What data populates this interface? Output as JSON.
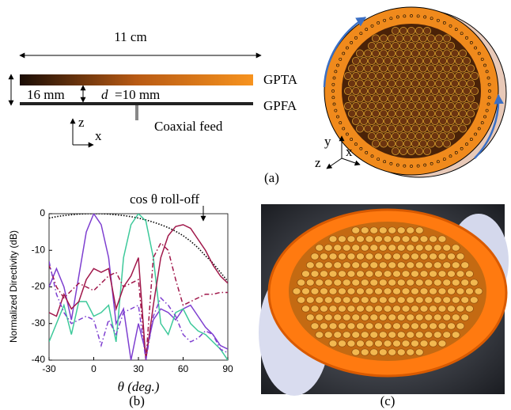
{
  "panel_a": {
    "width_label": "11 cm",
    "top_label": "GPTA",
    "bottom_label": "GPFA",
    "height_label": "16 mm",
    "gap_symbol": "d",
    "gap_label": "=10 mm",
    "feed_label": "Coaxial feed",
    "axes_left": [
      "z",
      "x"
    ],
    "axes_right": [
      "y",
      "x",
      "z"
    ],
    "panel_label": "(a)"
  },
  "chart_data": {
    "type": "line",
    "panel_label": "(b)",
    "ylabel": "Normalized Directivity (dB)",
    "xlabel": "θ (deg.)",
    "annotation": "cos θ roll-off",
    "x": [
      -30,
      -25,
      -20,
      -15,
      -10,
      -5,
      0,
      5,
      10,
      15,
      20,
      25,
      30,
      35,
      40,
      45,
      50,
      55,
      60,
      65,
      70,
      75,
      80,
      85,
      90
    ],
    "xlim": [
      -30,
      90
    ],
    "xticks": [
      -30,
      0,
      30,
      60,
      90
    ],
    "ylim": [
      -40,
      0
    ],
    "yticks": [
      0,
      -10,
      -20,
      -30,
      -40
    ],
    "series": [
      {
        "color": "#000000",
        "dash": "dotted",
        "values": [
          -1.2,
          -0.8,
          -0.5,
          -0.3,
          -0.1,
          0,
          0,
          0,
          -0.1,
          -0.3,
          -0.5,
          -0.8,
          -1.2,
          -1.7,
          -2.3,
          -3,
          -3.8,
          -4.8,
          -6,
          -7.5,
          -9.3,
          -11.5,
          -13.5,
          -16,
          -18.5
        ]
      },
      {
        "color": "#7e3fd0",
        "dash": "solid",
        "values": [
          -20,
          -15,
          -20,
          -29,
          -17,
          -5,
          0,
          -3,
          -12,
          -30,
          -26,
          -40,
          -30,
          -38,
          -29,
          -26,
          -27,
          -29,
          -26,
          -25,
          -28,
          -31,
          -33,
          -36,
          -37
        ]
      },
      {
        "color": "#3dc99a",
        "dash": "solid",
        "values": [
          -35,
          -30,
          -25,
          -33,
          -24,
          -24,
          -28,
          -27,
          -25,
          -35,
          -12,
          -3,
          0,
          -2,
          -12,
          -30,
          -33,
          -27,
          -26,
          -30,
          -32,
          -33,
          -35,
          -37,
          -40
        ]
      },
      {
        "color": "#a0174a",
        "dash": "solid",
        "values": [
          -27,
          -28,
          -22,
          -26,
          -24,
          -18,
          -15,
          -16,
          -15,
          -26,
          -20,
          -17,
          -12,
          -40,
          -25,
          -12,
          -6,
          -3.5,
          -3,
          -4,
          -7,
          -10,
          -14,
          -17,
          -19
        ]
      },
      {
        "color": "#a0174a",
        "dash": "dashdot",
        "values": [
          -14,
          -20,
          -23,
          -21,
          -19,
          -20,
          -21,
          -19,
          -17,
          -16,
          -20,
          -19,
          -18,
          -40,
          -12,
          -8,
          -10,
          -18,
          -25,
          -24,
          -23,
          -22,
          -22,
          -21.5,
          -21.5
        ]
      },
      {
        "color": "#7e3fd0",
        "dash": "dashdot",
        "values": [
          -13,
          -22,
          -27,
          -30,
          -29,
          -28,
          -29,
          -36,
          -29,
          -33,
          -27,
          -26,
          -25,
          -40,
          -28,
          -23,
          -25,
          -28,
          -33,
          -35,
          -34,
          -32,
          -33,
          -37,
          -38
        ]
      }
    ]
  },
  "panel_c": {
    "panel_label": "(c)"
  }
}
